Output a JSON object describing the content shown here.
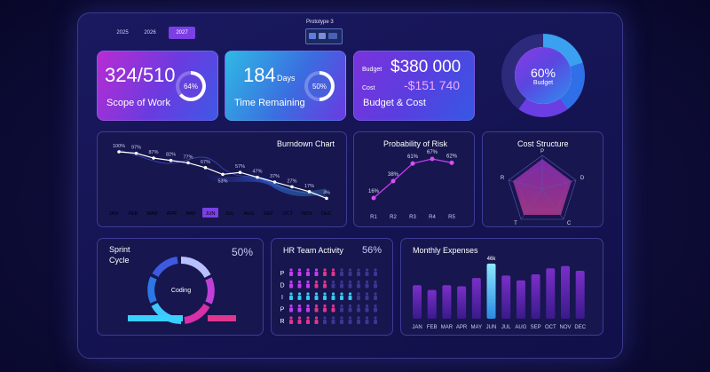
{
  "years": [
    "2025",
    "2026",
    "2027"
  ],
  "prototype": "Prototype 3",
  "kpi": {
    "scope_value": "324/510",
    "scope_pct": "64%",
    "scope_label": "Scope of Work",
    "time_value": "184",
    "time_unit": "Days",
    "time_pct": "50%",
    "time_label": "Time Remaining",
    "budget_label": "Budget",
    "budget_value": "$380 000",
    "cost_label": "Cost",
    "cost_value": "-$151 740",
    "budget_cost_label": "Budget & Cost"
  },
  "donut": {
    "pct": "60%",
    "label": "Budget",
    "value": 60
  },
  "burndown": {
    "title": "Burndown Chart",
    "months": [
      "JAN",
      "FEB",
      "MAR",
      "APR",
      "MAY",
      "JUN",
      "JUL",
      "AUG",
      "SEP",
      "OCT",
      "NOV",
      "DEC"
    ],
    "selected": "JUN",
    "values": [
      "100%",
      "97%",
      "87%",
      "82%",
      "77%",
      "67%",
      "53%",
      "57%",
      "47%",
      "37%",
      "27%",
      "17%",
      "3%"
    ]
  },
  "risk": {
    "title": "Probability of Risk",
    "categories": [
      "R1",
      "R2",
      "R3",
      "R4",
      "R5"
    ],
    "labels": [
      "16%",
      "38%",
      "61%",
      "67%",
      "62%"
    ]
  },
  "cost_structure": {
    "title": "Cost Structure",
    "axes": [
      "P",
      "D",
      "C",
      "T",
      "R"
    ]
  },
  "sprint": {
    "title_line1": "Sprint",
    "title_line2": "Cycle",
    "pct": "50%",
    "center": "Coding"
  },
  "hr": {
    "title": "HR Team Activity",
    "pct": "56%",
    "rows": [
      "P",
      "D",
      "I",
      "P",
      "R"
    ]
  },
  "expenses": {
    "title": "Monthly Expenses",
    "months": [
      "JAN",
      "FEB",
      "MAR",
      "APR",
      "MAY",
      "JUN",
      "JUL",
      "AUG",
      "SEP",
      "OCT",
      "NOV",
      "DEC"
    ],
    "highlight_label": "46k",
    "values": [
      28,
      24,
      28,
      27,
      34,
      46,
      36,
      32,
      37,
      42,
      44,
      40
    ]
  },
  "colors": {
    "accent": "#c43cf0",
    "cyan": "#39c8f0",
    "pink": "#e0358e",
    "purple": "#7a2fd0"
  }
}
